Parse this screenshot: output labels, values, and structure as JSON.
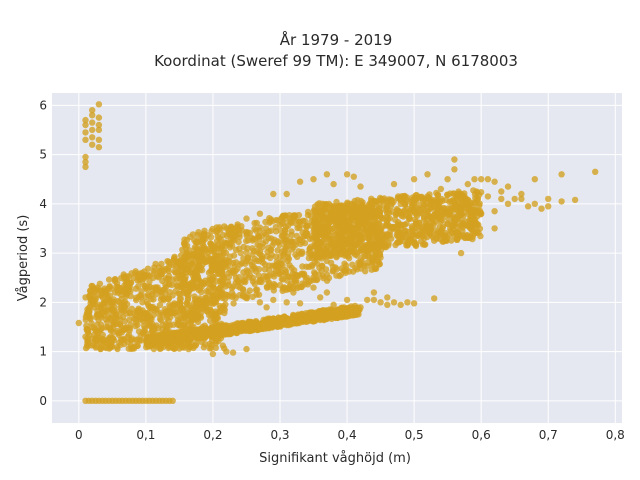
{
  "chart_data": {
    "type": "scatter",
    "title_line1": "År 1979 - 2019",
    "title_line2": "Koordinat (Sweref 99 TM): E 349007, N 6178003",
    "xlabel": "Signifikant våghöjd (m)",
    "ylabel": "Vågperiod (s)",
    "xlim": [
      -0.04,
      0.81
    ],
    "ylim": [
      -0.45,
      6.25
    ],
    "x_ticks": [
      0,
      0.1,
      0.2,
      0.3,
      0.4,
      0.5,
      0.6,
      0.7,
      0.8
    ],
    "x_tick_labels": [
      "0",
      "0,1",
      "0,2",
      "0,3",
      "0,4",
      "0,5",
      "0,6",
      "0,7",
      "0,8"
    ],
    "y_ticks": [
      0,
      1,
      2,
      3,
      4,
      5,
      6
    ],
    "y_tick_labels": [
      "0",
      "1",
      "2",
      "3",
      "4",
      "5",
      "6"
    ],
    "grid": true,
    "marker_color": "#D4A020",
    "plot_background": "#E5E8F0",
    "dense_regions": [
      {
        "x": [
          0.01,
          0.22
        ],
        "y_low": [
          1.05,
          1.05
        ],
        "y_high": [
          2.3,
          3.3
        ]
      },
      {
        "x": [
          0.15,
          0.45
        ],
        "y_low": [
          1.7,
          2.7
        ],
        "y_high": [
          3.4,
          4.1
        ]
      },
      {
        "x": [
          0.35,
          0.6
        ],
        "y_low": [
          2.9,
          3.3
        ],
        "y_high": [
          4.0,
          4.3
        ]
      },
      {
        "x": [
          0.1,
          0.42
        ],
        "y_low": [
          1.1,
          1.75
        ],
        "y_high": [
          1.3,
          1.95
        ]
      }
    ],
    "points": [
      [
        0.01,
        4.75
      ],
      [
        0.01,
        4.85
      ],
      [
        0.01,
        4.95
      ],
      [
        0.01,
        5.3
      ],
      [
        0.01,
        5.45
      ],
      [
        0.01,
        5.6
      ],
      [
        0.01,
        5.7
      ],
      [
        0.02,
        5.2
      ],
      [
        0.02,
        5.35
      ],
      [
        0.02,
        5.5
      ],
      [
        0.02,
        5.65
      ],
      [
        0.02,
        5.8
      ],
      [
        0.02,
        5.9
      ],
      [
        0.03,
        5.3
      ],
      [
        0.03,
        5.5
      ],
      [
        0.03,
        5.6
      ],
      [
        0.03,
        5.75
      ],
      [
        0.03,
        6.02
      ],
      [
        0.03,
        5.15
      ],
      [
        0.0,
        1.58
      ],
      [
        0.01,
        2.1
      ],
      [
        0.01,
        1.3
      ],
      [
        0.46,
        4.05
      ],
      [
        0.47,
        4.4
      ],
      [
        0.48,
        4.0
      ],
      [
        0.5,
        4.1
      ],
      [
        0.5,
        4.5
      ],
      [
        0.52,
        4.6
      ],
      [
        0.52,
        4.15
      ],
      [
        0.53,
        3.95
      ],
      [
        0.54,
        4.3
      ],
      [
        0.55,
        4.5
      ],
      [
        0.56,
        4.9
      ],
      [
        0.56,
        4.7
      ],
      [
        0.57,
        4.2
      ],
      [
        0.58,
        4.4
      ],
      [
        0.59,
        4.5
      ],
      [
        0.6,
        4.5
      ],
      [
        0.61,
        4.5
      ],
      [
        0.62,
        4.45
      ],
      [
        0.61,
        4.15
      ],
      [
        0.62,
        3.85
      ],
      [
        0.63,
        4.25
      ],
      [
        0.64,
        4.0
      ],
      [
        0.65,
        4.1
      ],
      [
        0.66,
        4.1
      ],
      [
        0.67,
        3.95
      ],
      [
        0.68,
        4.5
      ],
      [
        0.68,
        4.0
      ],
      [
        0.69,
        3.9
      ],
      [
        0.7,
        4.1
      ],
      [
        0.72,
        4.6
      ],
      [
        0.72,
        4.05
      ],
      [
        0.74,
        4.08
      ],
      [
        0.77,
        4.65
      ],
      [
        0.59,
        3.55
      ],
      [
        0.62,
        3.5
      ],
      [
        0.57,
        3.0
      ],
      [
        0.55,
        3.6
      ],
      [
        0.6,
        3.8
      ],
      [
        0.66,
        4.2
      ],
      [
        0.7,
        3.95
      ],
      [
        0.63,
        4.1
      ],
      [
        0.64,
        4.35
      ],
      [
        0.35,
        4.5
      ],
      [
        0.37,
        4.6
      ],
      [
        0.38,
        4.4
      ],
      [
        0.4,
        4.6
      ],
      [
        0.42,
        4.35
      ],
      [
        0.41,
        4.55
      ],
      [
        0.33,
        4.45
      ],
      [
        0.31,
        4.2
      ],
      [
        0.29,
        4.2
      ],
      [
        0.27,
        3.8
      ],
      [
        0.25,
        3.7
      ],
      [
        0.23,
        3.5
      ],
      [
        0.44,
        2.05
      ],
      [
        0.45,
        2.0
      ],
      [
        0.46,
        1.95
      ],
      [
        0.47,
        2.0
      ],
      [
        0.48,
        1.95
      ],
      [
        0.49,
        2.0
      ],
      [
        0.5,
        1.98
      ],
      [
        0.53,
        2.08
      ],
      [
        0.46,
        2.1
      ],
      [
        0.43,
        2.05
      ],
      [
        0.44,
        2.2
      ],
      [
        0.42,
        1.9
      ],
      [
        0.36,
        2.1
      ],
      [
        0.37,
        2.2
      ],
      [
        0.4,
        2.05
      ],
      [
        0.38,
        1.95
      ],
      [
        0.25,
        2.1
      ],
      [
        0.27,
        2.0
      ],
      [
        0.29,
        2.05
      ],
      [
        0.31,
        2.0
      ],
      [
        0.33,
        1.98
      ],
      [
        0.28,
        1.9
      ],
      [
        0.32,
        2.2
      ],
      [
        0.35,
        2.3
      ],
      [
        0.3,
        2.35
      ],
      [
        0.34,
        2.5
      ],
      [
        0.2,
        0.95
      ],
      [
        0.22,
        1.0
      ],
      [
        0.25,
        1.05
      ],
      [
        0.23,
        0.98
      ]
    ],
    "zero_row": {
      "x_min": 0.01,
      "x_max": 0.14,
      "y": 0
    }
  }
}
